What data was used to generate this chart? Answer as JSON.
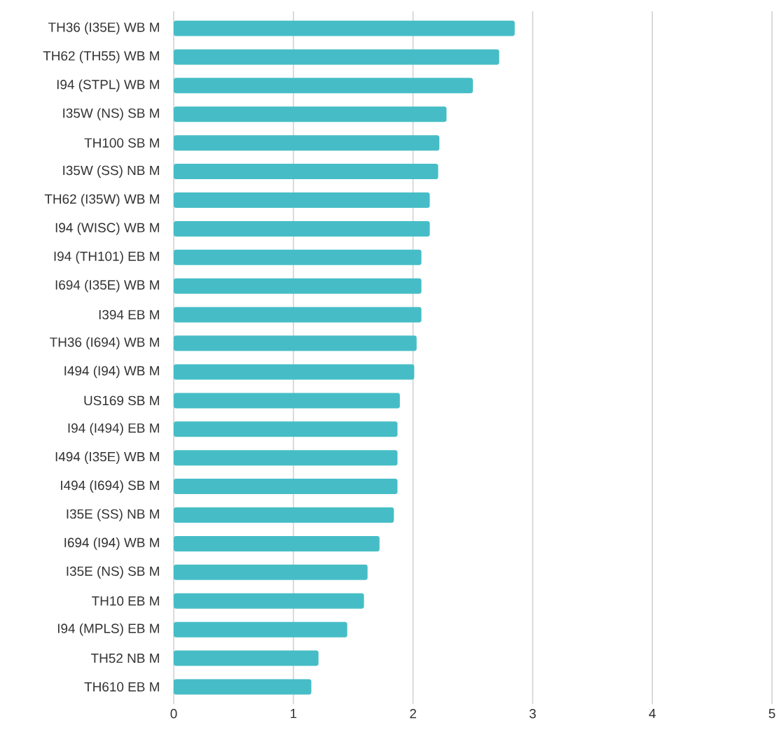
{
  "chart_data": {
    "type": "bar",
    "orientation": "horizontal",
    "categories": [
      "TH36 (I35E) WB M",
      "TH62 (TH55) WB M",
      "I94 (STPL) WB M",
      "I35W (NS) SB M",
      "TH100 SB M",
      "I35W (SS) NB M",
      "TH62 (I35W) WB M",
      "I94 (WISC) WB M",
      "I94 (TH101) EB M",
      "I694 (I35E) WB M",
      "I394 EB M",
      "TH36 (I694) WB M",
      "I494 (I94) WB M",
      "US169 SB M",
      "I94 (I494) EB M",
      "I494 (I35E) WB M",
      "I494 (I694) SB M",
      "I35E (SS) NB M",
      "I694 (I94) WB M",
      "I35E (NS) SB M",
      "TH10 EB M",
      "I94 (MPLS) EB M",
      "TH52 NB M",
      "TH610 EB M"
    ],
    "values": [
      2.85,
      2.72,
      2.5,
      2.28,
      2.22,
      2.21,
      2.14,
      2.14,
      2.07,
      2.07,
      2.07,
      2.03,
      2.01,
      1.89,
      1.87,
      1.87,
      1.87,
      1.84,
      1.72,
      1.62,
      1.59,
      1.45,
      1.21,
      1.15
    ],
    "color": "#46bdc6",
    "xlim": [
      0,
      5
    ],
    "xticks": [
      0,
      1,
      2,
      3,
      4,
      5
    ],
    "grid": "x"
  }
}
